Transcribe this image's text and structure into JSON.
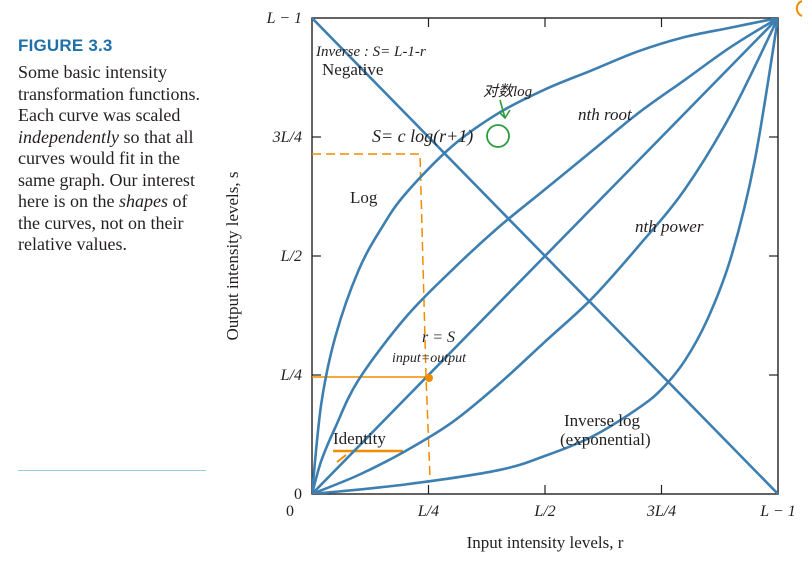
{
  "figure": {
    "label": "FIGURE 3.3",
    "caption_parts": [
      {
        "text": "Some basic intensity transformation functions. Each curve was scaled ",
        "emphasis": false
      },
      {
        "text": "independently",
        "emphasis": true
      },
      {
        "text": " so that all curves would fit in the same graph. Our interest here is on the ",
        "emphasis": false
      },
      {
        "text": "shapes",
        "emphasis": true
      },
      {
        "text": " of the curves, not on their relative values.",
        "emphasis": false
      }
    ]
  },
  "chart_data": {
    "type": "line",
    "xlabel": "Input intensity levels, r",
    "ylabel": "Output intensity levels, s",
    "x_ticks": [
      "0",
      "L/4",
      "L/2",
      "3L/4",
      "L − 1"
    ],
    "y_ticks": [
      "0",
      "L/4",
      "L/2",
      "3L/4",
      "L − 1"
    ],
    "xlim": [
      0,
      1
    ],
    "ylim": [
      0,
      1
    ],
    "grid": false,
    "line_color": "#3d7fb0",
    "series": [
      {
        "name": "Negative",
        "x": [
          0,
          1
        ],
        "y": [
          1,
          0
        ]
      },
      {
        "name": "Identity",
        "x": [
          0,
          1
        ],
        "y": [
          0,
          1
        ]
      },
      {
        "name": "Log",
        "x": [
          0,
          0.02,
          0.05,
          0.1,
          0.15,
          0.2,
          0.3,
          0.4,
          0.5,
          0.6,
          0.7,
          0.8,
          0.9,
          1
        ],
        "y": [
          0,
          0.19,
          0.33,
          0.47,
          0.56,
          0.63,
          0.73,
          0.8,
          0.85,
          0.89,
          0.93,
          0.96,
          0.98,
          1
        ]
      },
      {
        "name": "nth root",
        "x": [
          0,
          0.02,
          0.05,
          0.1,
          0.2,
          0.3,
          0.4,
          0.5,
          0.6,
          0.7,
          0.8,
          0.9,
          1
        ],
        "y": [
          0,
          0.07,
          0.14,
          0.24,
          0.37,
          0.47,
          0.56,
          0.64,
          0.72,
          0.8,
          0.87,
          0.94,
          1
        ]
      },
      {
        "name": "nth power",
        "x": [
          0,
          0.1,
          0.2,
          0.3,
          0.4,
          0.5,
          0.6,
          0.7,
          0.8,
          0.9,
          1
        ],
        "y": [
          0,
          0.04,
          0.09,
          0.15,
          0.23,
          0.32,
          0.41,
          0.52,
          0.64,
          0.8,
          1
        ]
      },
      {
        "name": "Inverse log (exponential)",
        "x": [
          0,
          0.2,
          0.4,
          0.5,
          0.6,
          0.7,
          0.75,
          0.8,
          0.85,
          0.9,
          0.95,
          1
        ],
        "y": [
          0,
          0.02,
          0.05,
          0.08,
          0.12,
          0.18,
          0.22,
          0.28,
          0.37,
          0.5,
          0.7,
          1
        ]
      }
    ],
    "curve_labels": [
      "Negative",
      "nth root",
      "Log",
      "nth power",
      "Identity",
      "Inverse log",
      "(exponential)"
    ]
  },
  "annotations": {
    "orange_color": "#f08c00",
    "green_color": "#2e9b3c",
    "inverse_formula": "Inverse : S= L-1-r",
    "log_formula": "S= c log(r+1)",
    "log_note": "对数log",
    "identity_formula": "r = S",
    "identity_note": "input=output"
  }
}
